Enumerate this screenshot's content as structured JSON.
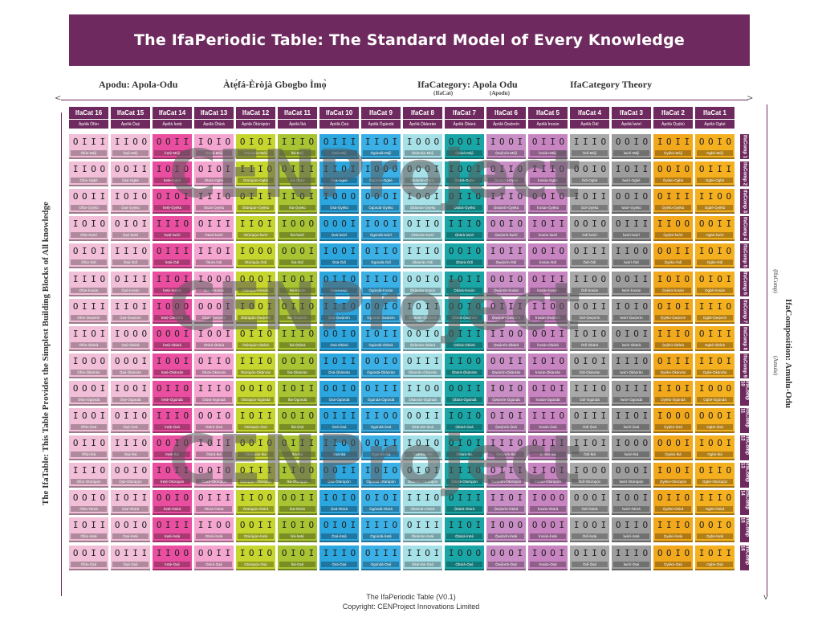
{
  "title": "The IfaPeriodic Table: The Standard Model of Every Knowledge",
  "subheaders": {
    "apodu": "Apodu: Apola-Odu",
    "atefa": "Àtẹ́fá-Èròjà Gbogbo Ìmọ̀",
    "category": "IfaCategory: Apola Odu",
    "category_sub1": "(IfaCat)",
    "category_sub2": "(Apodu)",
    "theory": "IfaCategory Theory"
  },
  "arrows": {
    "left": "<",
    "right": ">",
    "down": "v"
  },
  "left_label": "The IfaTable: This Table Provides the Simplest Building Blocks of All knowledge",
  "right_label": "IfaComposition: Amulu-Odu",
  "right_label_sub1": "(IfaComp)",
  "right_label_sub2": "(Amulu)",
  "columns": [
    {
      "label": "IfaCat 16",
      "sub": "Àpólà Òfún",
      "color": "#f2bfd8",
      "nm": "Òfún"
    },
    {
      "label": "IfaCat 15",
      "sub": "Àpólà Ọ̀ṣẹ́",
      "color": "#f2bfd8",
      "nm": "Ọ̀ṣẹ́"
    },
    {
      "label": "IfaCat 14",
      "sub": "Àpólà Ìrẹtẹ̀",
      "color": "#ea4ea0",
      "nm": "Ìrẹtẹ̀"
    },
    {
      "label": "IfaCat 13",
      "sub": "Àpólà Òtúrá",
      "color": "#f4a5d0",
      "nm": "Òtúrá"
    },
    {
      "label": "IfaCat 12",
      "sub": "Àpólà Òtúrúpọ̀n",
      "color": "#c6d62e",
      "nm": "Òtúrúpọ̀n"
    },
    {
      "label": "IfaCat 11",
      "sub": "Àpólà Ìká",
      "color": "#a8c432",
      "nm": "Ìká"
    },
    {
      "label": "IfaCat 10",
      "sub": "Àpólà Ọ̀sá",
      "color": "#2ba6df",
      "nm": "Ọ̀sá"
    },
    {
      "label": "IfaCat 9",
      "sub": "Àpólà Ògúndá",
      "color": "#3ab0e6",
      "nm": "Ògúndá"
    },
    {
      "label": "IfaCat 8",
      "sub": "Àpólà Ọ̀kànràn",
      "color": "#a7e1e8",
      "nm": "Ọ̀kànràn"
    },
    {
      "label": "IfaCat 7",
      "sub": "Àpólà Ọ̀bàrà",
      "color": "#1aa6a6",
      "nm": "Ọ̀bàrà"
    },
    {
      "label": "IfaCat 6",
      "sub": "Àpólà Ọ̀wọ́nrín",
      "color": "#c98ec5",
      "nm": "Ọ̀wọ́nrín"
    },
    {
      "label": "IfaCat 5",
      "sub": "Àpólà Ìrosùn",
      "color": "#c784c0",
      "nm": "Ìrosùn"
    },
    {
      "label": "IfaCat 4",
      "sub": "Àpólà Òdí",
      "color": "#a9a9a9",
      "nm": "Òdí"
    },
    {
      "label": "IfaCat 3",
      "sub": "Àpólà Ìwòrì",
      "color": "#9c9c9c",
      "nm": "Ìwòrì"
    },
    {
      "label": "IfaCat 2",
      "sub": "Àpólà Ọ̀yẹ̀kú",
      "color": "#f2a81c",
      "nm": "Ọ̀yẹ̀kú"
    },
    {
      "label": "IfaCat 1",
      "sub": "Àpólà Ogbè",
      "color": "#f5b01f",
      "nm": "Ogbè"
    }
  ],
  "rows": [
    {
      "label": "IfaComp 1",
      "nm": "Méjì"
    },
    {
      "label": "IfaComp 2",
      "nm": "Ogbè"
    },
    {
      "label": "IfaComp 3",
      "nm": "Ọ̀yẹ̀kú"
    },
    {
      "label": "IfaComp 4",
      "nm": "Ìwòrì"
    },
    {
      "label": "IfaComp 5",
      "nm": "Òdí"
    },
    {
      "label": "IfaComp 6",
      "nm": "Ìrosùn"
    },
    {
      "label": "IfaComp 7",
      "nm": "Ọ̀wọ́nrín"
    },
    {
      "label": "IfaComp 8",
      "nm": "Ọ̀bàrà"
    },
    {
      "label": "IfaComp 9",
      "nm": "Ọ̀kànràn"
    },
    {
      "label": "IfaComp 10",
      "nm": "Ògúndá"
    },
    {
      "label": "IfaComp 11",
      "nm": "Ọ̀sá"
    },
    {
      "label": "IfaComp 12",
      "nm": "Ìká"
    },
    {
      "label": "IfaComp 13",
      "nm": "Òtúrúpọ̀n"
    },
    {
      "label": "IfaComp 14",
      "nm": "Òtúrá"
    },
    {
      "label": "IfaComp 15",
      "nm": "Ìrẹtẹ̀"
    },
    {
      "label": "IfaComp 16",
      "nm": "Ọ̀ṣẹ́"
    }
  ],
  "symbols": [
    "OIII",
    "IIOO",
    "OOII",
    "IOIO",
    "OIOI",
    "IIIO",
    "OIII",
    "IIOI",
    "IOOO",
    "OOOI",
    "IOOI",
    "OIIO",
    "IIIO",
    "OOIO",
    "IOII",
    "OOIO"
  ],
  "footer_line1": "The IfaPeriodic Table (V0.1)",
  "footer_line2": "Copyright: CENProject Innovations Limited",
  "watermark": "CENProject"
}
